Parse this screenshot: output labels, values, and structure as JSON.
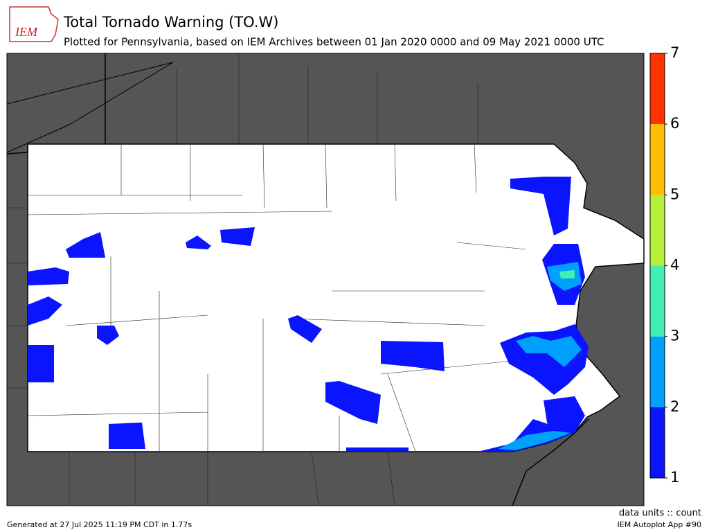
{
  "header": {
    "logo": "IEM",
    "title": "Total Tornado Warning (TO.W)",
    "subtitle": "Plotted for Pennsylvania, based on IEM Archives  between 01 Jan 2020 0000 and 09 May 2021 0000 UTC"
  },
  "colorbar": {
    "ticks": [
      1,
      2,
      3,
      4,
      5,
      6,
      7
    ],
    "colors": [
      "#0a14ff",
      "#00a0ff",
      "#40f0b0",
      "#b4f03c",
      "#ffbe00",
      "#ff3200"
    ],
    "units_label": "data units :: count"
  },
  "footer": {
    "generated": "Generated at 27 Jul 2025 11:19 PM CDT in 1.77s",
    "app": "IEM Autoplot App #90"
  }
}
